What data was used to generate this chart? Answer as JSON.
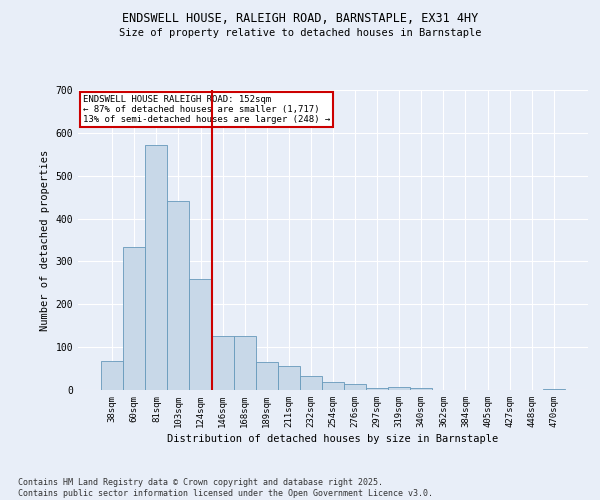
{
  "title1": "ENDSWELL HOUSE, RALEIGH ROAD, BARNSTAPLE, EX31 4HY",
  "title2": "Size of property relative to detached houses in Barnstaple",
  "xlabel": "Distribution of detached houses by size in Barnstaple",
  "ylabel": "Number of detached properties",
  "categories": [
    "38sqm",
    "60sqm",
    "81sqm",
    "103sqm",
    "124sqm",
    "146sqm",
    "168sqm",
    "189sqm",
    "211sqm",
    "232sqm",
    "254sqm",
    "276sqm",
    "297sqm",
    "319sqm",
    "340sqm",
    "362sqm",
    "384sqm",
    "405sqm",
    "427sqm",
    "448sqm",
    "470sqm"
  ],
  "values": [
    68,
    333,
    571,
    440,
    258,
    125,
    125,
    65,
    55,
    32,
    18,
    15,
    5,
    7,
    5,
    0,
    0,
    0,
    0,
    0,
    3
  ],
  "bar_color": "#c8d8e8",
  "bar_edge_color": "#6699bb",
  "vline_pos": 4.5,
  "vline_color": "#cc0000",
  "annotation_title": "ENDSWELL HOUSE RALEIGH ROAD: 152sqm",
  "annotation_line1": "← 87% of detached houses are smaller (1,717)",
  "annotation_line2": "13% of semi-detached houses are larger (248) →",
  "annotation_box_color": "#cc0000",
  "background_color": "#e8eef8",
  "plot_bg_color": "#e8eef8",
  "footer": "Contains HM Land Registry data © Crown copyright and database right 2025.\nContains public sector information licensed under the Open Government Licence v3.0.",
  "ylim": [
    0,
    700
  ],
  "yticks": [
    0,
    100,
    200,
    300,
    400,
    500,
    600,
    700
  ]
}
